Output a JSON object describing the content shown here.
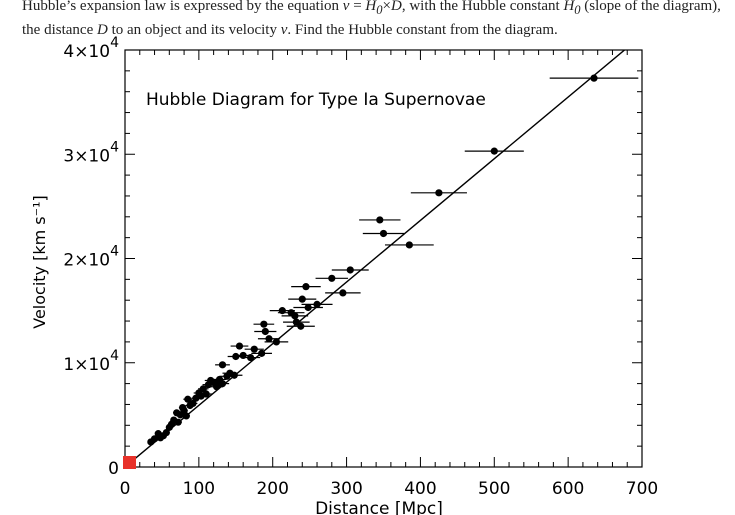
{
  "question": {
    "part1": "Hubble’s expansion law is expressed by the equation ",
    "v_symbol": "v",
    "eq_mid": " = ",
    "h_symbol": "H",
    "h_sub": "0",
    "times": "×",
    "d_symbol": "D",
    "part2": ", with the Hubble constant ",
    "h2_symbol": "H",
    "h2_sub": "0",
    "part3": " (slope of the diagram), the distance ",
    "d2_symbol": "D",
    "part4": " to an object and its velocity ",
    "v2_symbol": "v",
    "part5": ".  Find the Hubble constant from the diagram."
  },
  "chart_data": {
    "type": "scatter",
    "title": "Hubble Diagram for Type Ia Supernovae",
    "xlabel": "Distance [Mpc]",
    "ylabel": "Velocity [km s⁻¹]",
    "xlim": [
      0,
      700
    ],
    "ylim": [
      0,
      40000
    ],
    "x_ticks": [
      {
        "value": 0,
        "label": "0"
      },
      {
        "value": 100,
        "label": "100"
      },
      {
        "value": 200,
        "label": "200"
      },
      {
        "value": 300,
        "label": "300"
      },
      {
        "value": 400,
        "label": "400"
      },
      {
        "value": 500,
        "label": "500"
      },
      {
        "value": 600,
        "label": "600"
      },
      {
        "value": 700,
        "label": "700"
      }
    ],
    "y_ticks": [
      {
        "value": 0,
        "mantissa": "0",
        "exponent": ""
      },
      {
        "value": 10000,
        "mantissa": "1×10",
        "exponent": "4"
      },
      {
        "value": 20000,
        "mantissa": "2×10",
        "exponent": "4"
      },
      {
        "value": 30000,
        "mantissa": "3×10",
        "exponent": "4"
      },
      {
        "value": 40000,
        "mantissa": "4×10",
        "exponent": "4"
      }
    ],
    "fit_line": {
      "x": [
        0,
        700
      ],
      "y": [
        0,
        41400
      ]
    },
    "origin_marker_color": "#e8322a",
    "points": [
      {
        "x": 35,
        "y": 2400,
        "xerr": 3
      },
      {
        "x": 40,
        "y": 2700,
        "xerr": 3
      },
      {
        "x": 45,
        "y": 3200,
        "xerr": 3
      },
      {
        "x": 48,
        "y": 2800,
        "xerr": 3
      },
      {
        "x": 52,
        "y": 3000,
        "xerr": 4
      },
      {
        "x": 56,
        "y": 3300,
        "xerr": 4
      },
      {
        "x": 60,
        "y": 3800,
        "xerr": 4
      },
      {
        "x": 63,
        "y": 4100,
        "xerr": 4
      },
      {
        "x": 66,
        "y": 4500,
        "xerr": 4
      },
      {
        "x": 70,
        "y": 5200,
        "xerr": 5
      },
      {
        "x": 72,
        "y": 4300,
        "xerr": 5
      },
      {
        "x": 75,
        "y": 5000,
        "xerr": 5
      },
      {
        "x": 78,
        "y": 5700,
        "xerr": 5
      },
      {
        "x": 80,
        "y": 5400,
        "xerr": 5
      },
      {
        "x": 83,
        "y": 4900,
        "xerr": 5
      },
      {
        "x": 85,
        "y": 6500,
        "xerr": 6
      },
      {
        "x": 88,
        "y": 5900,
        "xerr": 6
      },
      {
        "x": 92,
        "y": 6100,
        "xerr": 6
      },
      {
        "x": 96,
        "y": 6600,
        "xerr": 6
      },
      {
        "x": 100,
        "y": 7100,
        "xerr": 7
      },
      {
        "x": 103,
        "y": 6800,
        "xerr": 7
      },
      {
        "x": 106,
        "y": 7500,
        "xerr": 7
      },
      {
        "x": 110,
        "y": 7000,
        "xerr": 8
      },
      {
        "x": 113,
        "y": 7900,
        "xerr": 8
      },
      {
        "x": 116,
        "y": 8300,
        "xerr": 8
      },
      {
        "x": 120,
        "y": 8100,
        "xerr": 8
      },
      {
        "x": 124,
        "y": 7700,
        "xerr": 9
      },
      {
        "x": 128,
        "y": 8400,
        "xerr": 9
      },
      {
        "x": 132,
        "y": 8000,
        "xerr": 9
      },
      {
        "x": 132,
        "y": 9800,
        "xerr": 10
      },
      {
        "x": 138,
        "y": 8700,
        "xerr": 10
      },
      {
        "x": 142,
        "y": 9000,
        "xerr": 10
      },
      {
        "x": 148,
        "y": 8800,
        "xerr": 11
      },
      {
        "x": 150,
        "y": 10600,
        "xerr": 11
      },
      {
        "x": 155,
        "y": 11600,
        "xerr": 12
      },
      {
        "x": 160,
        "y": 10700,
        "xerr": 12
      },
      {
        "x": 170,
        "y": 10500,
        "xerr": 13
      },
      {
        "x": 175,
        "y": 11300,
        "xerr": 13
      },
      {
        "x": 185,
        "y": 10900,
        "xerr": 14
      },
      {
        "x": 188,
        "y": 13700,
        "xerr": 14
      },
      {
        "x": 190,
        "y": 13000,
        "xerr": 15
      },
      {
        "x": 195,
        "y": 12300,
        "xerr": 15
      },
      {
        "x": 205,
        "y": 12000,
        "xerr": 16
      },
      {
        "x": 213,
        "y": 15000,
        "xerr": 17
      },
      {
        "x": 225,
        "y": 14800,
        "xerr": 18
      },
      {
        "x": 230,
        "y": 14500,
        "xerr": 18
      },
      {
        "x": 232,
        "y": 13900,
        "xerr": 18
      },
      {
        "x": 238,
        "y": 13500,
        "xerr": 19
      },
      {
        "x": 240,
        "y": 16100,
        "xerr": 19
      },
      {
        "x": 245,
        "y": 17300,
        "xerr": 20
      },
      {
        "x": 248,
        "y": 15300,
        "xerr": 20
      },
      {
        "x": 260,
        "y": 15600,
        "xerr": 21
      },
      {
        "x": 280,
        "y": 18100,
        "xerr": 22
      },
      {
        "x": 295,
        "y": 16700,
        "xerr": 24
      },
      {
        "x": 305,
        "y": 18900,
        "xerr": 25
      },
      {
        "x": 345,
        "y": 23700,
        "xerr": 28
      },
      {
        "x": 350,
        "y": 22400,
        "xerr": 28
      },
      {
        "x": 385,
        "y": 21300,
        "xerr": 33
      },
      {
        "x": 425,
        "y": 26300,
        "xerr": 38
      },
      {
        "x": 500,
        "y": 30300,
        "xerr": 40
      },
      {
        "x": 635,
        "y": 37300,
        "xerr": 60
      }
    ]
  }
}
